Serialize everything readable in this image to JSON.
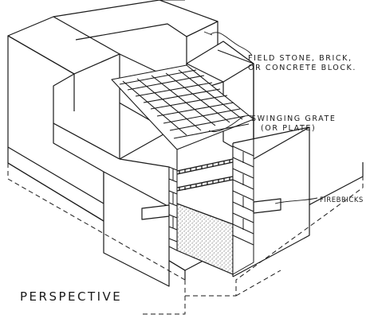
{
  "labels": {
    "field_line1": "FIELD STONE, BRICK,",
    "field_line2": "OR CONCRETE BLOCK.",
    "grate_line1": "SWINGING GRATE",
    "grate_line2": "(OR PLATE)",
    "firebricks": "FIREBRICKS",
    "perspective": "PERSPECTIVE"
  },
  "colors": {
    "ink": "#1a1a1a",
    "paper": "#ffffff"
  }
}
